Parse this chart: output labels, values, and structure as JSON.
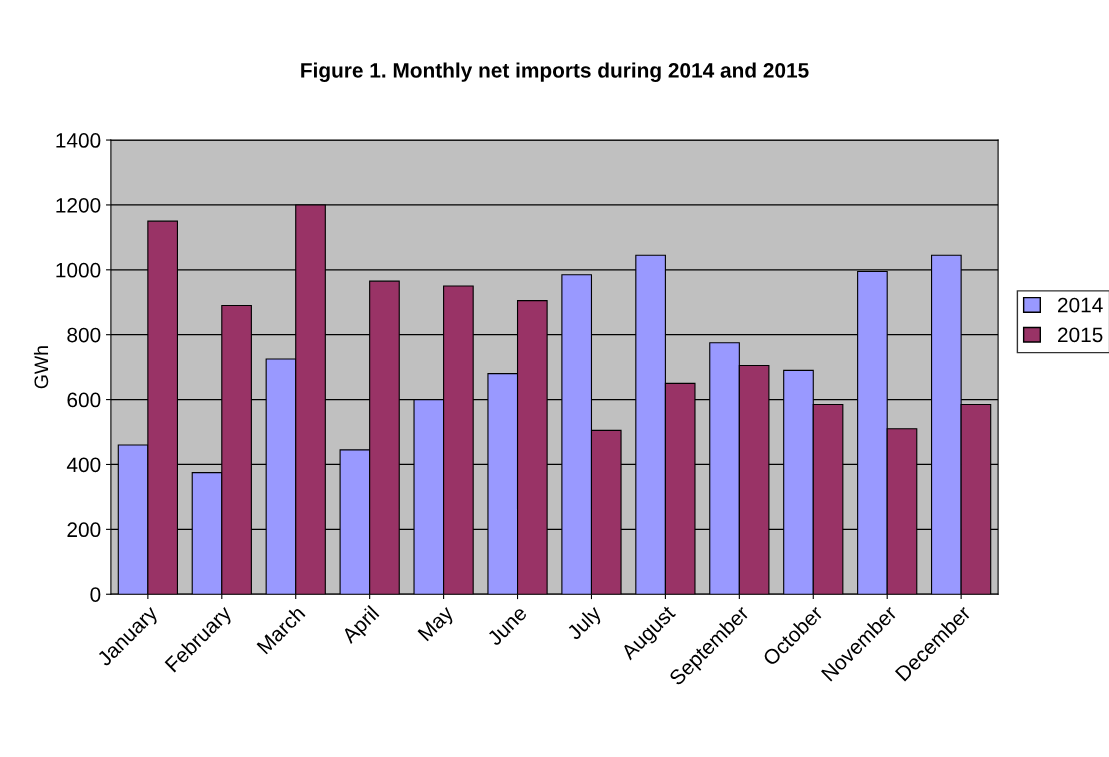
{
  "chart_data": {
    "type": "bar",
    "title": "Figure 1. Monthly net imports during 2014 and 2015",
    "ylabel": "GWh",
    "categories": [
      "January",
      "February",
      "March",
      "April",
      "May",
      "June",
      "July",
      "August",
      "September",
      "October",
      "November",
      "December"
    ],
    "series": [
      {
        "name": "2014",
        "color": "#9999ff",
        "values": [
          460,
          375,
          725,
          445,
          600,
          680,
          985,
          1045,
          775,
          690,
          995,
          1045
        ]
      },
      {
        "name": "2015",
        "color": "#993366",
        "values": [
          1150,
          890,
          1200,
          965,
          950,
          905,
          505,
          650,
          705,
          585,
          510,
          585
        ]
      }
    ],
    "ylim": [
      0,
      1400
    ],
    "yticks": [
      0,
      200,
      400,
      600,
      800,
      1000,
      1200,
      1400
    ],
    "grid": "y",
    "legend": "right"
  }
}
